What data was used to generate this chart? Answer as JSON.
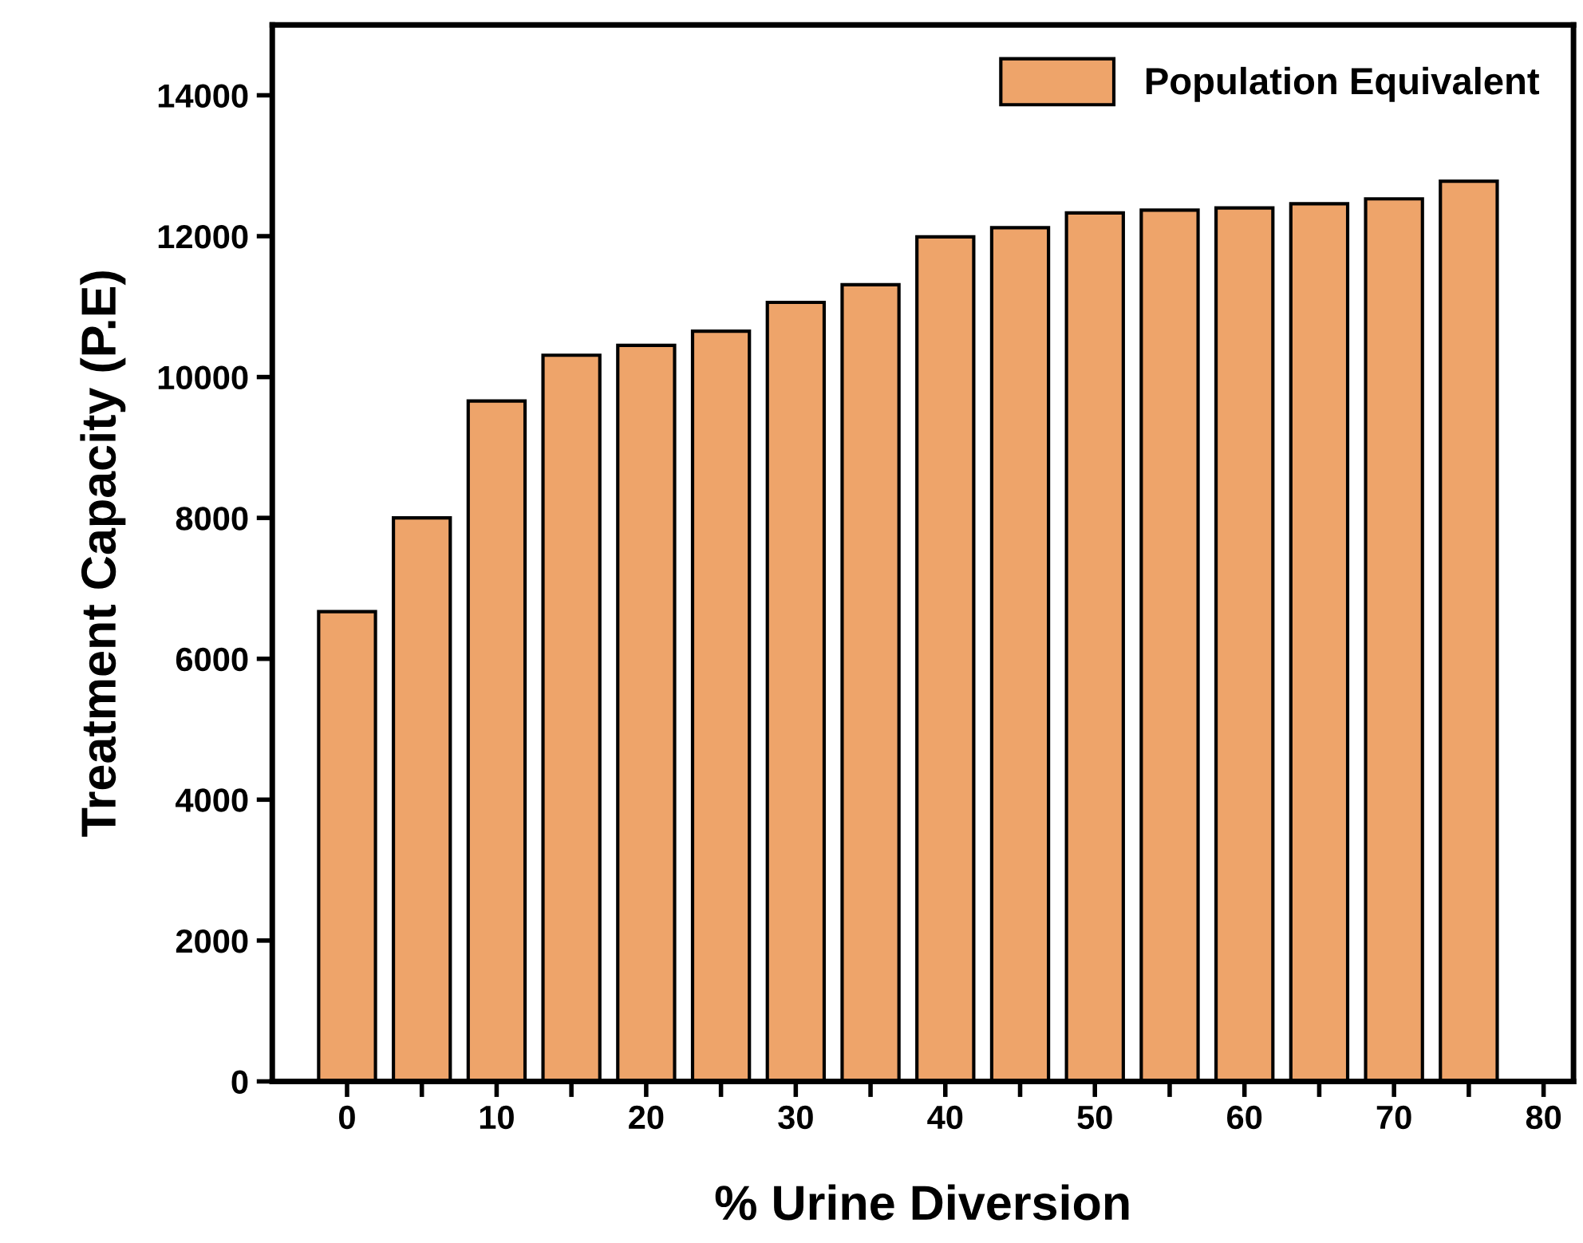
{
  "chart_data": {
    "type": "bar",
    "xlabel": "% Urine Diversion",
    "ylabel": "Treatment Capacity (P.E)",
    "x": [
      0,
      5,
      10,
      15,
      20,
      25,
      30,
      35,
      40,
      45,
      50,
      55,
      60,
      65,
      70,
      75
    ],
    "series": [
      {
        "name": "Population Equivalent",
        "color": "#eea46a",
        "values": [
          6670,
          8000,
          9660,
          10310,
          10450,
          10650,
          11060,
          11310,
          11990,
          12120,
          12330,
          12370,
          12400,
          12460,
          12530,
          12780
        ]
      }
    ],
    "xlim": [
      -5,
      82
    ],
    "ylim": [
      0,
      15000
    ],
    "xticks": [
      0,
      {
        "value": 5,
        "label": null
      },
      10,
      {
        "value": 15,
        "label": null
      },
      20,
      {
        "value": 25,
        "label": null
      },
      30,
      {
        "value": 35,
        "label": null
      },
      40,
      {
        "value": 45,
        "label": null
      },
      50,
      {
        "value": 55,
        "label": null
      },
      60,
      {
        "value": 65,
        "label": null
      },
      70,
      {
        "value": 75,
        "label": null
      },
      80
    ],
    "yticks": [
      0,
      2000,
      4000,
      6000,
      8000,
      10000,
      12000,
      14000
    ],
    "grid": false,
    "legend": "top right"
  }
}
